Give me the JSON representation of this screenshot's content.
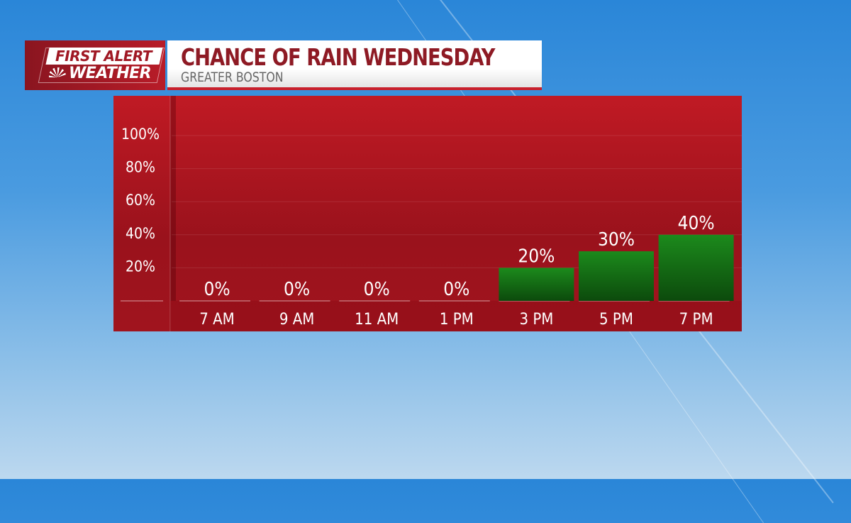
{
  "logo": {
    "line1": "FIRST ALERT",
    "line2": "WEATHER",
    "brand": "NBC peacock"
  },
  "header": {
    "title": "CHANCE OF RAIN WEDNESDAY",
    "subtitle": "GREATER BOSTON"
  },
  "colors": {
    "panel": "#a8141e",
    "bar": "#1a7a1a",
    "accent": "#c8202c"
  },
  "chart_data": {
    "type": "bar",
    "title": "CHANCE OF RAIN WEDNESDAY",
    "categories": [
      "7 AM",
      "9 AM",
      "11 AM",
      "1 PM",
      "3 PM",
      "5 PM",
      "7 PM"
    ],
    "values": [
      0,
      0,
      0,
      0,
      20,
      30,
      40
    ],
    "data_labels": [
      "0%",
      "0%",
      "0%",
      "0%",
      "20%",
      "30%",
      "40%"
    ],
    "yticks": [
      "20%",
      "40%",
      "60%",
      "80%",
      "100%"
    ],
    "ylim": [
      0,
      100
    ],
    "grid": true
  }
}
